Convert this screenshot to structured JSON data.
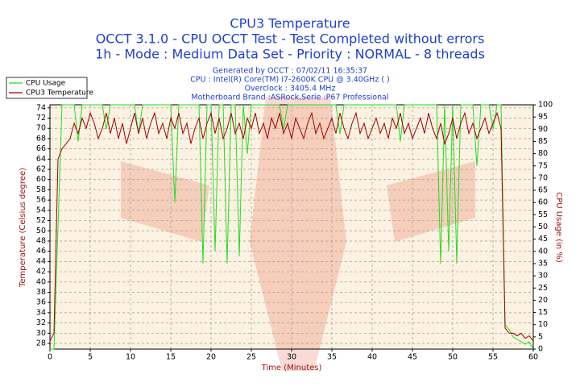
{
  "chart_data": {
    "type": "line",
    "title": "CPU3 Temperature",
    "subtitle": [
      "OCCT 3.1.0 - CPU OCCT Test - Test Completed without errors",
      "1h - Mode : Medium Data Set - Priority : NORMAL - 8 threads"
    ],
    "info": [
      "Generated by OCCT : 07/02/11 16:35:37",
      "CPU : Intel(R) Core(TM) i7-2600K CPU @ 3.40GHz (  )",
      "Overclock : 3405.4 MHz",
      "Motherboard Brand :ASRock,Serie :P67 Professional"
    ],
    "x_label": "Time (Minutes)",
    "y_label": "Temperature (Celsius degree)",
    "y2_label": "CPU Usage (in %)",
    "xlim": [
      0,
      60
    ],
    "xticks": [
      0,
      5,
      10,
      15,
      20,
      25,
      30,
      35,
      40,
      45,
      50,
      55,
      60
    ],
    "ylim": [
      26.9,
      74.6
    ],
    "yticks": [
      28,
      30,
      32,
      34,
      36,
      38,
      40,
      42,
      44,
      46,
      48,
      50,
      52,
      54,
      56,
      58,
      60,
      62,
      64,
      66,
      68,
      70,
      72,
      74
    ],
    "y2lim": [
      0,
      100
    ],
    "y2ticks": [
      0,
      5,
      10,
      15,
      20,
      25,
      30,
      35,
      40,
      45,
      50,
      55,
      60,
      65,
      70,
      75,
      80,
      85,
      90,
      95,
      100
    ],
    "grid": true,
    "legend": "top-left",
    "x": [
      0,
      0.5,
      1,
      1.5,
      2,
      2.5,
      3,
      3.5,
      4,
      4.5,
      5,
      5.5,
      6,
      6.5,
      7,
      7.5,
      8,
      8.5,
      9,
      9.5,
      10,
      10.5,
      11,
      11.5,
      12,
      12.5,
      13,
      13.5,
      14,
      14.5,
      15,
      15.5,
      16,
      16.5,
      17,
      17.5,
      18,
      18.5,
      19,
      19.5,
      20,
      20.5,
      21,
      21.5,
      22,
      22.5,
      23,
      23.5,
      24,
      24.5,
      25,
      25.5,
      26,
      26.5,
      27,
      27.5,
      28,
      28.5,
      29,
      29.5,
      30,
      30.5,
      31,
      31.5,
      32,
      32.5,
      33,
      33.5,
      34,
      34.5,
      35,
      35.5,
      36,
      36.5,
      37,
      37.5,
      38,
      38.5,
      39,
      39.5,
      40,
      40.5,
      41,
      41.5,
      42,
      42.5,
      43,
      43.5,
      44,
      44.5,
      45,
      45.5,
      46,
      46.5,
      47,
      47.5,
      48,
      48.5,
      49,
      49.5,
      50,
      50.5,
      51,
      51.5,
      52,
      52.5,
      53,
      53.5,
      54,
      54.5,
      55,
      55.5,
      56,
      56.5,
      57,
      57.5,
      58,
      58.5,
      59,
      59.5,
      60
    ],
    "series": [
      {
        "name": "CPU Usage",
        "color": "#22dd22",
        "axis": "y2",
        "values": [
          0,
          0,
          50,
          100,
          100,
          100,
          100,
          85,
          100,
          100,
          100,
          100,
          100,
          100,
          90,
          100,
          100,
          100,
          100,
          100,
          100,
          100,
          88,
          100,
          100,
          100,
          100,
          100,
          100,
          100,
          100,
          60,
          100,
          100,
          100,
          100,
          100,
          100,
          35,
          100,
          100,
          40,
          100,
          100,
          35,
          100,
          100,
          38,
          100,
          80,
          100,
          100,
          100,
          100,
          100,
          100,
          100,
          100,
          90,
          100,
          100,
          100,
          100,
          100,
          100,
          100,
          100,
          100,
          100,
          100,
          100,
          100,
          88,
          100,
          100,
          100,
          100,
          100,
          100,
          100,
          100,
          100,
          100,
          100,
          100,
          100,
          100,
          85,
          100,
          100,
          100,
          100,
          100,
          100,
          100,
          100,
          100,
          35,
          100,
          40,
          100,
          35,
          100,
          100,
          100,
          100,
          75,
          100,
          100,
          100,
          90,
          100,
          100,
          10,
          8,
          5,
          4,
          3,
          2,
          3,
          0
        ]
      },
      {
        "name": "CPU3 Temperature",
        "color": "#a00000",
        "axis": "y",
        "values": [
          28.5,
          30,
          64,
          66,
          67,
          68,
          71,
          69,
          72,
          70,
          73,
          71,
          68,
          70,
          73,
          69,
          72,
          68,
          71,
          67,
          70,
          73,
          69,
          72,
          68,
          71,
          73,
          69,
          71,
          68,
          72,
          70,
          73,
          69,
          71,
          67,
          70,
          72,
          68,
          71,
          73,
          69,
          72,
          68,
          70,
          73,
          69,
          71,
          68,
          72,
          70,
          73,
          69,
          71,
          68,
          72,
          70,
          73,
          69,
          71,
          68,
          72,
          70,
          68,
          71,
          73,
          69,
          71,
          68,
          70,
          72,
          69,
          73,
          70,
          68,
          71,
          73,
          69,
          71,
          68,
          70,
          72,
          69,
          71,
          68,
          72,
          70,
          73,
          69,
          71,
          68,
          70,
          72,
          69,
          73,
          70,
          68,
          71,
          67,
          69,
          72,
          68,
          71,
          73,
          69,
          71,
          68,
          70,
          72,
          69,
          71,
          73,
          70,
          31,
          30,
          30,
          29.5,
          30,
          29,
          29.5,
          28.5
        ]
      }
    ]
  }
}
